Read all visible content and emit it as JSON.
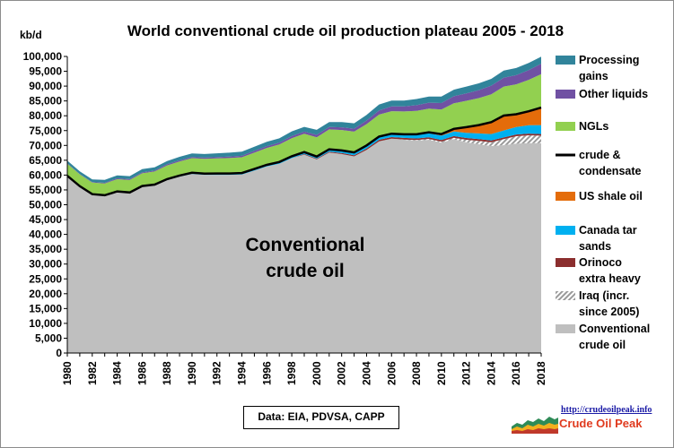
{
  "chart_data": {
    "type": "area",
    "stacked": true,
    "title": "World conventional crude oil production plateau 2005 - 2018",
    "ylabel": "kb/d",
    "ylim": [
      0,
      100000
    ],
    "yticks": [
      "0",
      "5,000",
      "10,000",
      "15,000",
      "20,000",
      "25,000",
      "30,000",
      "35,000",
      "40,000",
      "45,000",
      "50,000",
      "55,000",
      "60,000",
      "65,000",
      "70,000",
      "75,000",
      "80,000",
      "85,000",
      "90,000",
      "95,000",
      "100,000"
    ],
    "xlim": [
      1980,
      2018
    ],
    "xticks": [
      "1980",
      "1982",
      "1984",
      "1986",
      "1988",
      "1990",
      "1992",
      "1994",
      "1996",
      "1998",
      "2000",
      "2002",
      "2004",
      "2006",
      "2008",
      "2010",
      "2012",
      "2014",
      "2016",
      "2018"
    ],
    "x": [
      1980,
      1981,
      1982,
      1983,
      1984,
      1985,
      1986,
      1987,
      1988,
      1989,
      1990,
      1991,
      1992,
      1993,
      1994,
      1995,
      1996,
      1997,
      1998,
      1999,
      2000,
      2001,
      2002,
      2003,
      2004,
      2005,
      2006,
      2007,
      2008,
      2009,
      2010,
      2011,
      2012,
      2013,
      2014,
      2015,
      2016,
      2017,
      2018
    ],
    "grid": false,
    "legend_position": "right",
    "center_label": [
      "Conventional",
      "crude oil"
    ],
    "source_note": "Data: EIA, PDVSA, CAPP",
    "logo": {
      "url": "http://crudeoilpeak.info",
      "name": "Crude Oil Peak"
    },
    "series": [
      {
        "name": "Conventional crude oil",
        "color": "#bfbfbf",
        "values": [
          59600,
          56100,
          53400,
          53000,
          54300,
          53900,
          56000,
          56500,
          58300,
          59500,
          60400,
          60100,
          60100,
          60100,
          60200,
          61500,
          62900,
          63800,
          65700,
          66900,
          65300,
          67600,
          67100,
          66300,
          68500,
          71400,
          72300,
          71900,
          71600,
          71900,
          70900,
          72100,
          71100,
          70400,
          69800,
          70100,
          70600,
          70800,
          70800
        ]
      },
      {
        "name": "Iraq (incr. since 2005)",
        "color": "#d9d9d9",
        "pattern": "hatch",
        "values": [
          0,
          0,
          0,
          0,
          0,
          0,
          0,
          0,
          0,
          0,
          0,
          0,
          0,
          0,
          0,
          0,
          0,
          0,
          0,
          0,
          0,
          0,
          0,
          0,
          0,
          0,
          0,
          100,
          200,
          300,
          400,
          500,
          800,
          1100,
          1300,
          2000,
          2500,
          2600,
          2500
        ]
      },
      {
        "name": "Orinoco extra heavy",
        "color": "#8b2e2e",
        "values": [
          0,
          0,
          0,
          0,
          0,
          0,
          0,
          0,
          0,
          0,
          0,
          0,
          0,
          0,
          0,
          0,
          0,
          0,
          0,
          200,
          250,
          300,
          350,
          400,
          450,
          500,
          500,
          550,
          550,
          550,
          550,
          550,
          600,
          600,
          600,
          600,
          600,
          600,
          550
        ]
      },
      {
        "name": "Canada tar sands",
        "color": "#00b0f0",
        "values": [
          150,
          150,
          150,
          200,
          200,
          250,
          300,
          300,
          350,
          350,
          400,
          400,
          450,
          450,
          500,
          550,
          550,
          600,
          650,
          650,
          700,
          800,
          850,
          950,
          1050,
          1100,
          1150,
          1200,
          1250,
          1350,
          1450,
          1550,
          1750,
          1950,
          2150,
          2350,
          2500,
          2800,
          3000
        ]
      },
      {
        "name": "US shale oil",
        "color": "#e46c0a",
        "values": [
          0,
          0,
          0,
          0,
          0,
          0,
          0,
          0,
          0,
          0,
          0,
          0,
          0,
          0,
          0,
          0,
          0,
          0,
          0,
          0,
          0,
          0,
          0,
          0,
          0,
          0,
          0,
          0,
          150,
          300,
          500,
          900,
          1900,
          2800,
          4000,
          5000,
          4300,
          4700,
          5900
        ]
      },
      {
        "name": "NGLs",
        "color": "#92d050",
        "values": [
          4100,
          4000,
          3900,
          4000,
          4100,
          4200,
          4300,
          4400,
          4600,
          4700,
          4900,
          5000,
          5100,
          5200,
          5300,
          5500,
          5700,
          5900,
          6100,
          6200,
          6500,
          6700,
          6900,
          7000,
          7200,
          7400,
          7600,
          7700,
          7900,
          8000,
          8300,
          8600,
          8900,
          9100,
          9400,
          9800,
          10100,
          10600,
          11300
        ]
      },
      {
        "name": "Other liquids",
        "color": "#7051a3",
        "values": [
          100,
          100,
          200,
          200,
          300,
          300,
          300,
          300,
          400,
          400,
          400,
          400,
          400,
          500,
          500,
          600,
          600,
          600,
          700,
          700,
          800,
          800,
          900,
          1000,
          1200,
          1400,
          1600,
          1700,
          1900,
          2000,
          2200,
          2400,
          2500,
          2700,
          2900,
          3000,
          3100,
          3300,
          3500
        ]
      },
      {
        "name": "Processing gains",
        "color": "#31849b",
        "values": [
          900,
          900,
          900,
          1000,
          1000,
          1000,
          1100,
          1100,
          1100,
          1200,
          1200,
          1200,
          1300,
          1300,
          1400,
          1400,
          1500,
          1500,
          1600,
          1600,
          1700,
          1700,
          1800,
          1800,
          1900,
          2000,
          2000,
          2000,
          2100,
          2100,
          2200,
          2200,
          2300,
          2300,
          2300,
          2400,
          2400,
          2400,
          2400
        ]
      }
    ],
    "line_series": {
      "name": "crude & condensate",
      "color": "#000000",
      "stacked_over": 5
    }
  }
}
